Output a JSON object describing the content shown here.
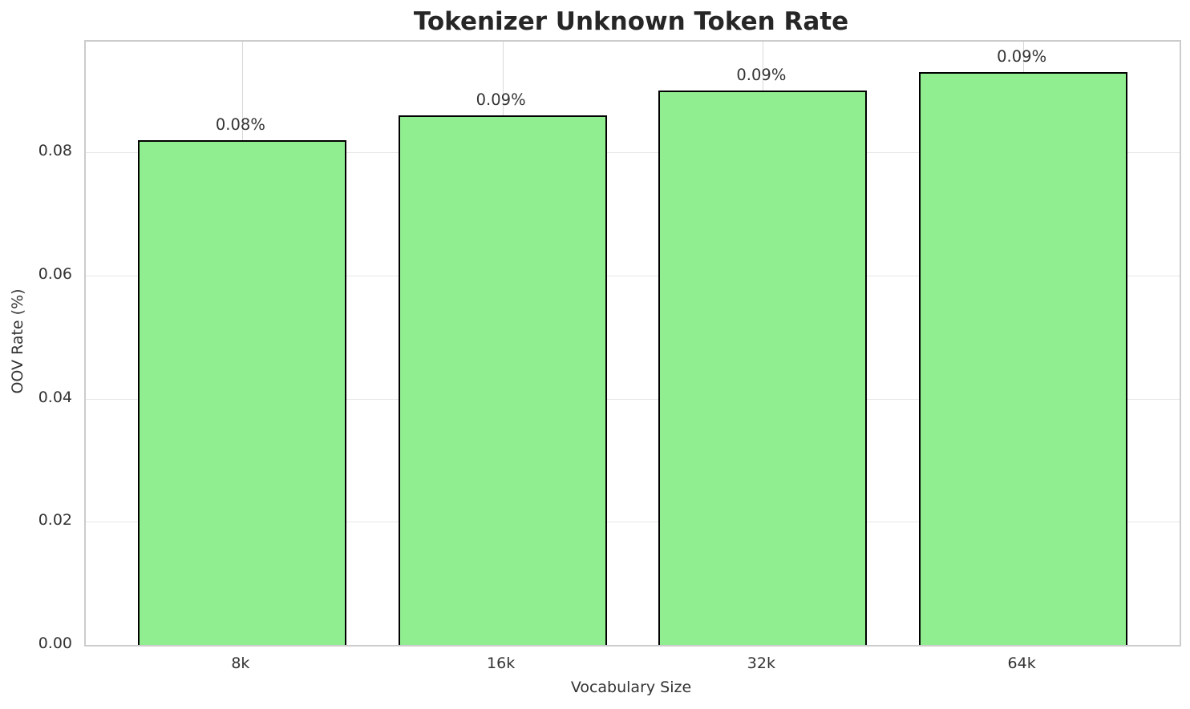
{
  "chart_data": {
    "type": "bar",
    "title": "Tokenizer Unknown Token Rate",
    "xlabel": "Vocabulary Size",
    "ylabel": "OOV Rate (%)",
    "categories": [
      "8k",
      "16k",
      "32k",
      "64k"
    ],
    "values": [
      0.082,
      0.086,
      0.09,
      0.093
    ],
    "bar_labels": [
      "0.08%",
      "0.09%",
      "0.09%",
      "0.09%"
    ],
    "ytick_values": [
      0.0,
      0.02,
      0.04,
      0.06,
      0.08
    ],
    "ytick_labels": [
      "0.00",
      "0.02",
      "0.04",
      "0.06",
      "0.08"
    ],
    "ylim": [
      0,
      0.098
    ],
    "grid": "on",
    "legend": "none",
    "colors": {
      "bar_fill": "#90ee90",
      "bar_edge": "#000000",
      "grid_horizontal": "#e7e7e7",
      "grid_vertical": "#d9d9d9",
      "spine": "#cccccc",
      "text": "#333333",
      "title_text": "#262626"
    }
  }
}
